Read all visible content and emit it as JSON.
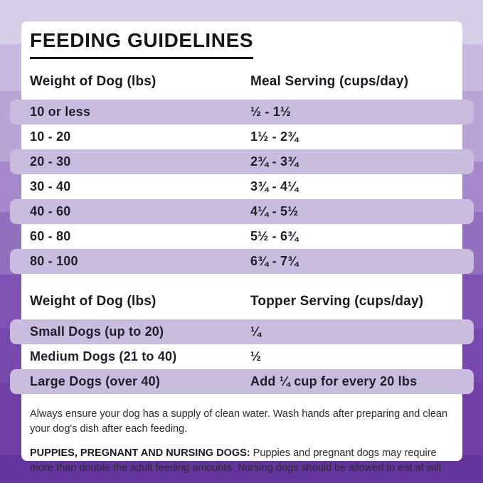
{
  "title": "FEEDING GUIDELINES",
  "meal_table": {
    "col1_header": "Weight of Dog (lbs)",
    "col2_header": "Meal Serving (cups/day)",
    "rows": [
      {
        "weight": "10 or less",
        "serving": "½ - 1½"
      },
      {
        "weight": "10 - 20",
        "serving": "1½ - 2¾"
      },
      {
        "weight": "20 - 30",
        "serving": "2¾ - 3¾"
      },
      {
        "weight": "30 - 40",
        "serving": "3¾ - 4¼"
      },
      {
        "weight": "40 - 60",
        "serving": "4¼ - 5½"
      },
      {
        "weight": "60 - 80",
        "serving": "5½ - 6¾"
      },
      {
        "weight": "80 - 100",
        "serving": "6¾ - 7¾"
      }
    ]
  },
  "topper_table": {
    "col1_header": "Weight of Dog (lbs)",
    "col2_header": "Topper Serving (cups/day)",
    "rows": [
      {
        "weight": "Small Dogs (up to 20)",
        "serving": "¼"
      },
      {
        "weight": "Medium Dogs (21 to 40)",
        "serving": "½"
      },
      {
        "weight": "Large Dogs (over 40)",
        "serving": "Add ¼ cup for every 20 lbs"
      }
    ]
  },
  "notes": {
    "water_note": "Always ensure your dog has a supply of clean water. Wash hands after preparing and clean your dog's dish after each feeding.",
    "puppies_label": "PUPPIES, PREGNANT AND NURSING DOGS:",
    "puppies_note": "Puppies and pregnant dogs may require more than double the adult feeding amounts. Nursing dogs should be allowed to eat at will."
  },
  "colors": {
    "row_highlight": "#c9bcdf",
    "card_background": "#ffffff",
    "text": "#1b181f",
    "background_top": "#d8cee8",
    "background_bottom": "#63359c"
  }
}
